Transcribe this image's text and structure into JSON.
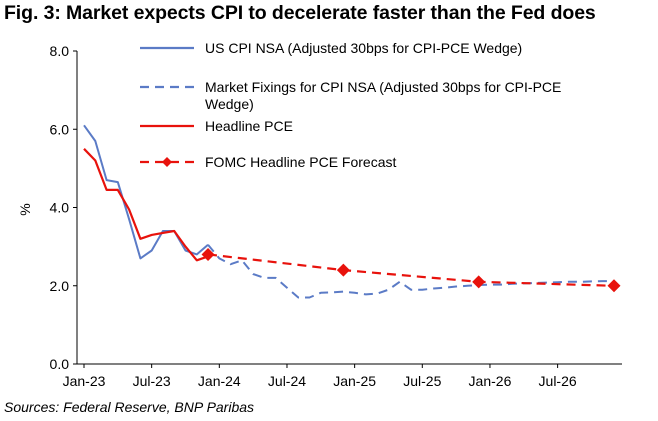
{
  "title": "Fig. 3: Market expects CPI to decelerate faster than the Fed does",
  "source": "Sources: Federal Reserve, BNP Paribas",
  "chart_data": {
    "type": "line",
    "ylabel": "%",
    "ylim": [
      0,
      8
    ],
    "yticks": [
      "0.0",
      "2.0",
      "4.0",
      "6.0",
      "8.0"
    ],
    "ytick_values": [
      0,
      2,
      4,
      6,
      8
    ],
    "xlim": [
      "2023-01",
      "2026-12"
    ],
    "xticks": [
      "Jan-23",
      "Jul-23",
      "Jan-24",
      "Jul-24",
      "Jan-25",
      "Jul-25",
      "Jan-26",
      "Jul-26"
    ],
    "xtick_dates": [
      "2023-01",
      "2023-07",
      "2024-01",
      "2024-07",
      "2025-01",
      "2025-07",
      "2026-01",
      "2026-07"
    ],
    "grid": false,
    "legend_position": "top-right",
    "series": [
      {
        "name": "US CPI NSA (Adjusted 30bps for CPI-PCE Wedge)",
        "color": "#5B7BC6",
        "style": "solid",
        "x": [
          "2023-01",
          "2023-02",
          "2023-03",
          "2023-04",
          "2023-05",
          "2023-06",
          "2023-07",
          "2023-08",
          "2023-09",
          "2023-10",
          "2023-11",
          "2023-12"
        ],
        "y": [
          6.1,
          5.7,
          4.7,
          4.65,
          3.7,
          2.7,
          2.9,
          3.4,
          3.4,
          2.9,
          2.8,
          3.05
        ]
      },
      {
        "name": "Market Fixings for CPI NSA (Adjusted 30bps for CPI-PCE Wedge)",
        "color": "#5B7BC6",
        "style": "dashed",
        "x": [
          "2023-12",
          "2024-01",
          "2024-02",
          "2024-03",
          "2024-04",
          "2024-05",
          "2024-06",
          "2024-07",
          "2024-08",
          "2024-09",
          "2024-10",
          "2024-11",
          "2024-12",
          "2025-01",
          "2025-02",
          "2025-03",
          "2025-04",
          "2025-05",
          "2025-06",
          "2025-07",
          "2025-08",
          "2025-09",
          "2025-10",
          "2025-11",
          "2025-12",
          "2026-01",
          "2026-02",
          "2026-03",
          "2026-04",
          "2026-05",
          "2026-06",
          "2026-07",
          "2026-08",
          "2026-09",
          "2026-10",
          "2026-11",
          "2026-12"
        ],
        "y": [
          3.05,
          2.7,
          2.55,
          2.65,
          2.3,
          2.2,
          2.2,
          1.95,
          1.7,
          1.7,
          1.82,
          1.83,
          1.85,
          1.82,
          1.78,
          1.8,
          1.9,
          2.1,
          1.9,
          1.9,
          1.93,
          1.95,
          1.98,
          2.0,
          2.02,
          2.03,
          2.03,
          2.05,
          2.06,
          2.07,
          2.08,
          2.09,
          2.1,
          2.1,
          2.11,
          2.12,
          2.12
        ]
      },
      {
        "name": "Headline PCE",
        "color": "#E8120C",
        "style": "solid",
        "x": [
          "2023-01",
          "2023-02",
          "2023-03",
          "2023-04",
          "2023-05",
          "2023-06",
          "2023-07",
          "2023-08",
          "2023-09",
          "2023-10",
          "2023-11",
          "2023-12"
        ],
        "y": [
          5.5,
          5.2,
          4.45,
          4.45,
          3.95,
          3.2,
          3.3,
          3.35,
          3.4,
          3.0,
          2.65,
          2.75
        ]
      },
      {
        "name": "FOMC Headline PCE Forecast",
        "color": "#E8120C",
        "style": "dashed-markers",
        "x": [
          "2023-12",
          "2024-12",
          "2025-12",
          "2026-12"
        ],
        "y": [
          2.8,
          2.4,
          2.1,
          2.0
        ],
        "markers": [
          "2023-12",
          "2024-12",
          "2025-12",
          "2026-12"
        ]
      }
    ]
  }
}
